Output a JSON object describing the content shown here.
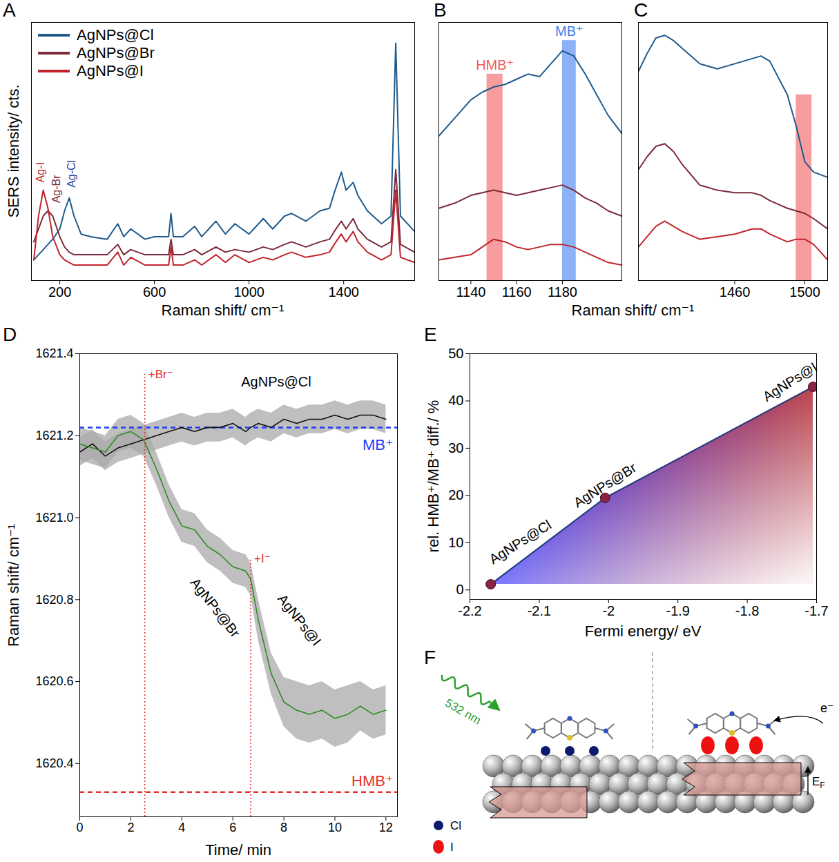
{
  "chart_data": [
    {
      "panel": "A",
      "type": "line",
      "x_label": "Raman shift/ cm⁻¹",
      "y_label": "SERS intensity/ cts.",
      "xlim": [
        80,
        1700
      ],
      "xticks": [
        200,
        600,
        1000,
        1400
      ],
      "ylim": [
        0,
        100
      ],
      "tick_labels": "x",
      "legend": "top-left",
      "x": [
        90,
        110,
        130,
        150,
        170,
        200,
        220,
        240,
        260,
        290,
        330,
        400,
        445,
        470,
        500,
        560,
        600,
        660,
        670,
        680,
        720,
        770,
        800,
        860,
        900,
        940,
        1000,
        1030,
        1060,
        1100,
        1150,
        1180,
        1240,
        1300,
        1340,
        1360,
        1390,
        1410,
        1440,
        1460,
        1500,
        1560,
        1600,
        1620,
        1640,
        1700
      ],
      "series": [
        {
          "name": "AgNPs@Cl",
          "color": "#1f5a8c",
          "values": [
            8,
            10,
            12,
            14,
            16,
            20,
            27,
            32,
            25,
            18,
            17,
            16,
            22,
            17,
            20,
            16,
            17,
            17,
            26,
            17,
            17,
            21,
            17,
            23,
            18,
            22,
            18,
            21,
            24,
            20,
            25,
            26,
            23,
            27,
            28,
            34,
            42,
            35,
            38,
            33,
            27,
            22,
            25,
            92,
            25,
            19
          ]
        },
        {
          "name": "AgNPs@Br",
          "color": "#7b2a3a",
          "values": [
            15,
            20,
            25,
            27,
            25,
            17,
            13,
            11,
            10,
            10,
            10,
            10,
            14,
            10,
            12,
            10,
            10,
            10,
            16,
            10,
            10,
            12,
            10,
            13,
            11,
            12,
            11,
            12,
            13,
            12,
            14,
            15,
            13,
            15,
            16,
            19,
            23,
            20,
            24,
            20,
            16,
            13,
            15,
            43,
            14,
            11
          ]
        },
        {
          "name": "AgNPs@I",
          "color": "#c0232b",
          "values": [
            8,
            25,
            35,
            28,
            17,
            10,
            8,
            7,
            6,
            6,
            6,
            6,
            11,
            6,
            9,
            6,
            6,
            6,
            13,
            6,
            6,
            8,
            6,
            10,
            7,
            10,
            7,
            8,
            9,
            8,
            10,
            11,
            9,
            10,
            11,
            14,
            18,
            15,
            19,
            15,
            11,
            8,
            10,
            35,
            9,
            7
          ]
        }
      ],
      "annotations": [
        {
          "text": "Ag-I",
          "x": 120,
          "y": 38,
          "color": "#c0232b"
        },
        {
          "text": "Ag-Br",
          "x": 185,
          "y": 30,
          "color": "#7b2a3a"
        },
        {
          "text": "Ag-Cl",
          "x": 250,
          "y": 36,
          "color": "#1f3f9c"
        }
      ]
    },
    {
      "panel": "B",
      "type": "line",
      "x_label": "Raman shift/ cm⁻¹",
      "xlim": [
        1126,
        1206
      ],
      "xticks": [
        1140,
        1160,
        1180
      ],
      "ylim": [
        0,
        100
      ],
      "tick_labels": "x",
      "x": [
        1126,
        1133,
        1140,
        1145,
        1150,
        1155,
        1160,
        1165,
        1170,
        1175,
        1180,
        1185,
        1190,
        1195,
        1200,
        1206
      ],
      "series": [
        {
          "color": "#1f5a8c",
          "values": [
            56,
            63,
            70,
            73,
            75,
            76,
            78,
            80,
            79,
            84,
            89,
            87,
            80,
            72,
            64,
            57
          ]
        },
        {
          "color": "#7b2a3a",
          "values": [
            28,
            30,
            33,
            34,
            35,
            34,
            33,
            34,
            35,
            36,
            37,
            35,
            32,
            30,
            27,
            25
          ]
        },
        {
          "color": "#c0232b",
          "values": [
            8,
            9,
            10,
            13,
            16,
            15,
            13,
            12,
            13,
            14,
            14,
            13,
            11,
            9,
            7,
            6
          ]
        }
      ],
      "bands": [
        {
          "label": "HMB⁺",
          "x1": 1147,
          "x2": 1154,
          "y": 80,
          "color": "#f25c5c"
        },
        {
          "label": "MB⁺",
          "x1": 1180,
          "x2": 1186,
          "y": 93,
          "color": "#3d7ff0"
        }
      ]
    },
    {
      "panel": "C",
      "type": "line",
      "xlim": [
        1405,
        1513
      ],
      "xticks": [
        1460,
        1500
      ],
      "ylim": [
        0,
        100
      ],
      "tick_labels": "x",
      "x": [
        1405,
        1410,
        1415,
        1420,
        1425,
        1430,
        1440,
        1450,
        1460,
        1470,
        1475,
        1480,
        1490,
        1495,
        1500,
        1505,
        1513
      ],
      "series": [
        {
          "color": "#1f5a8c",
          "values": [
            81,
            88,
            94,
            95,
            93,
            90,
            84,
            82,
            84,
            86,
            87,
            85,
            72,
            60,
            46,
            42,
            40
          ]
        },
        {
          "color": "#7b2a3a",
          "values": [
            43,
            48,
            52,
            53,
            50,
            45,
            37,
            35,
            34,
            34,
            33,
            31,
            28,
            27,
            26,
            24,
            20
          ]
        },
        {
          "color": "#c0232b",
          "values": [
            13,
            17,
            21,
            23,
            21,
            19,
            16,
            17,
            18,
            20,
            20,
            18,
            15,
            16,
            16,
            14,
            8
          ]
        }
      ],
      "bands": [
        {
          "x1": 1495,
          "x2": 1504,
          "y": 72,
          "color": "#f25c5c"
        }
      ]
    },
    {
      "panel": "D",
      "type": "line",
      "x_label": "Time/ min",
      "y_label": "Raman shift/ cm⁻¹",
      "xlim": [
        0,
        12.45
      ],
      "xticks": [
        0,
        2,
        4,
        6,
        8,
        10,
        12
      ],
      "ylim": [
        1620.27,
        1621.4
      ],
      "yticks": [
        1620.4,
        1620.6,
        1620.8,
        {
          "value": 1621,
          "label": "1621.0"
        },
        1621.2,
        1621.4
      ],
      "x": [
        0,
        0.5,
        1,
        1.5,
        2,
        2.5,
        3,
        3.5,
        4,
        4.5,
        5,
        5.5,
        6,
        6.5,
        6.7,
        7,
        7.5,
        8,
        8.5,
        9,
        9.5,
        10,
        10.5,
        11,
        11.5,
        12
      ],
      "series": [
        {
          "name": "AgNPs@Cl",
          "color": "#111111",
          "values": [
            1621.16,
            1621.18,
            1621.15,
            1621.17,
            1621.18,
            1621.19,
            1621.2,
            1621.21,
            1621.22,
            1621.21,
            1621.22,
            1621.22,
            1621.23,
            1621.21,
            1621.22,
            1621.23,
            1621.22,
            1621.24,
            1621.23,
            1621.24,
            1621.24,
            1621.25,
            1621.24,
            1621.25,
            1621.25,
            1621.24
          ],
          "errors": [
            0.035,
            0.035,
            0.035,
            0.035,
            0.035,
            0.035,
            0.035,
            0.035,
            0.035,
            0.035,
            0.035,
            0.035,
            0.035,
            0.035,
            0.035,
            0.035,
            0.035,
            0.035,
            0.035,
            0.035,
            0.035,
            0.035,
            0.035,
            0.035,
            0.035,
            0.035
          ],
          "label_at": [
            7.7,
            1621.33
          ]
        },
        {
          "name": "AgNPs@Br",
          "color": "#2e8b22",
          "values": [
            1621.18,
            1621.17,
            1621.16,
            1621.2,
            1621.21,
            1621.19,
            1621.12,
            1621.04,
            1620.98,
            1620.97,
            1620.93,
            1620.91,
            1620.88,
            1620.87,
            1620.85,
            null,
            null,
            null,
            null,
            null,
            null,
            null,
            null,
            null,
            null,
            null
          ],
          "errors": [
            0.04,
            0.04,
            0.04,
            0.04,
            0.04,
            0.04,
            0.04,
            0.04,
            0.04,
            0.04,
            0.04,
            0.04,
            0.04,
            0.04,
            0.04,
            null,
            null,
            null,
            null,
            null,
            null,
            null,
            null,
            null,
            null,
            null
          ],
          "label_at": [
            5.3,
            1620.78
          ]
        },
        {
          "name": "AgNPs@I",
          "color": "#2e8b22",
          "values": [
            null,
            null,
            null,
            null,
            null,
            null,
            null,
            null,
            null,
            null,
            null,
            null,
            null,
            null,
            1620.85,
            1620.75,
            1620.62,
            1620.55,
            1620.53,
            1620.52,
            1620.53,
            1620.51,
            1620.52,
            1620.54,
            1620.52,
            1620.53
          ],
          "errors": [
            null,
            null,
            null,
            null,
            null,
            null,
            null,
            null,
            null,
            null,
            null,
            null,
            null,
            null,
            0.04,
            0.05,
            0.05,
            0.06,
            0.07,
            0.07,
            0.07,
            0.07,
            0.07,
            0.06,
            0.06,
            0.06
          ],
          "label_at": [
            8.6,
            1620.75
          ]
        }
      ],
      "reference_lines": [
        {
          "label": "MB⁺",
          "value": 1621.22,
          "color": "#1a3cff"
        },
        {
          "label": "HMB⁺",
          "value": 1620.33,
          "color": "#e8302a"
        }
      ],
      "events": [
        {
          "label": "+Br⁻",
          "x": 2.55,
          "y": 1621.35
        },
        {
          "label": "+I⁻",
          "x": 6.7,
          "y": 1620.9
        }
      ]
    },
    {
      "panel": "E",
      "type": "line",
      "marker": "circle",
      "color": "#1f3a7a",
      "x_label": "Fermi energy/ eV",
      "y_label": "rel. HMB⁺/MB⁺ diff./ %",
      "xlim": [
        -2.2,
        -1.7
      ],
      "xticks": [
        -2.2,
        -2.1,
        -2,
        -1.9,
        -1.8,
        -1.7
      ],
      "ylim": [
        -2,
        50
      ],
      "yticks": [
        0,
        10,
        20,
        30,
        40,
        50
      ],
      "x": [
        -2.17,
        -2.005,
        -1.705
      ],
      "values": [
        1.2,
        19.5,
        43
      ],
      "point_labels": [
        "AgNPs@Cl",
        "AgNPs@Br",
        "AgNPs@I"
      ]
    }
  ],
  "diagram": {
    "panel": "F",
    "excitation_label": "532 nm",
    "electron_label": "e⁻",
    "fermi_label": {
      "main": "E",
      "sub": "F"
    },
    "legend": [
      {
        "label": "Cl",
        "color": "#0a1a6e"
      },
      {
        "label": "I",
        "color": "#ee1111"
      }
    ]
  }
}
